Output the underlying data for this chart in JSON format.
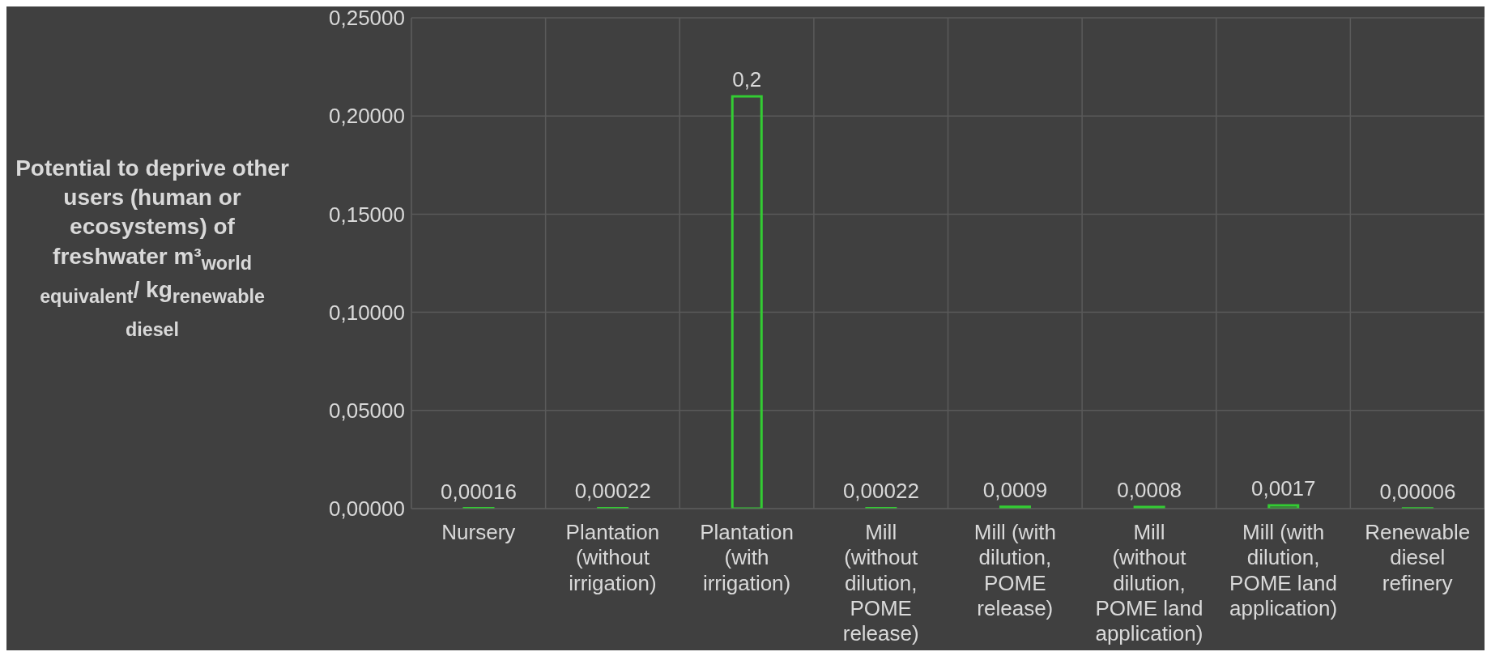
{
  "chart_data": {
    "type": "bar",
    "ylabel": "Potential to deprive other users (human or ecosystems) of freshwater m³$_{world equivalent}$/ kg$_{renewable diesel}$",
    "categories": [
      "Nursery",
      "Plantation (without irrigation)",
      "Plantation (with irrigation)",
      "Mill (without dilution, POME release)",
      "Mill (with dilution, POME release)",
      "Mill (without dilution, POME land application)",
      "Mill (with dilution, POME land application)",
      "Renewable diesel refinery"
    ],
    "values": [
      0.00016,
      0.00022,
      0.21,
      0.00022,
      0.0009,
      0.0008,
      0.0017,
      6e-05
    ],
    "value_labels": [
      "0,00016",
      "0,00022",
      "0,2",
      "0,00022",
      "0,0009",
      "0,0008",
      "0,0017",
      "0,00006"
    ],
    "color": "#33cc33",
    "ylim": [
      0,
      0.25
    ],
    "yticks": [
      {
        "value": 0,
        "label": "0,00000"
      },
      {
        "value": 0.05,
        "label": "0,05000"
      },
      {
        "value": 0.1,
        "label": "0,10000"
      },
      {
        "value": 0.15,
        "label": "0,15000"
      },
      {
        "value": 0.2,
        "label": "0,20000"
      },
      {
        "value": 0.25,
        "label": "0,25000"
      }
    ],
    "grid": true
  }
}
